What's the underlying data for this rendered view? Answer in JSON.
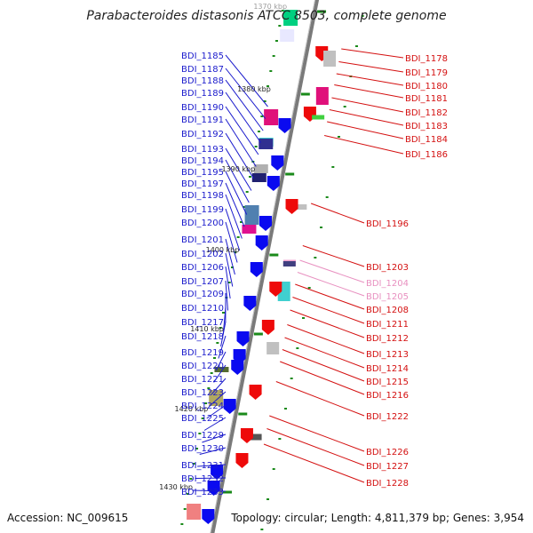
{
  "title": "Parabacteroides distasonis ATCC 8503, complete genome",
  "accession": "Accession: NC_009615",
  "summary": "Topology: circular; Length: 4,811,379 bp; Genes: 3,954",
  "colors": {
    "left_label": "#1a1acc",
    "right_label": "#d41010",
    "faded_label": "#e890c0",
    "forward_gene": "#0a0af0",
    "reverse_gene": "#ee0a0a",
    "backbone": "#7a7a7a",
    "tick": "#1a8a1a"
  },
  "scale_labels": [
    "1370 kbp",
    "1380 kbp",
    "1390 kbp",
    "1400 kbp",
    "1410 kbp",
    "1420 kbp",
    "1430 kbp"
  ],
  "left_genes": [
    "BDI_1185",
    "BDI_1187",
    "BDI_1188",
    "BDI_1189",
    "BDI_1190",
    "BDI_1191",
    "BDI_1192",
    "BDI_1193",
    "BDI_1194",
    "BDI_1195",
    "BDI_1197",
    "BDI_1198",
    "BDI_1199",
    "BDI_1200",
    "BDI_1201",
    "BDI_1202",
    "BDI_1206",
    "BDI_1207",
    "BDI_1209",
    "BDI_1210",
    "BDI_1217",
    "BDI_1218",
    "BDI_1219",
    "BDI_1220",
    "BDI_1221",
    "BDI_1223",
    "BDI_1224",
    "BDI_1225",
    "BDI_1229",
    "BDI_1230",
    "BDI_1231",
    "BDI_1232",
    "BDI_1233"
  ],
  "right_genes": [
    "BDI_1178",
    "BDI_1179",
    "BDI_1180",
    "BDI_1181",
    "BDI_1182",
    "BDI_1183",
    "BDI_1184",
    "BDI_1186",
    "BDI_1196",
    "BDI_1203",
    "BDI_1204",
    "BDI_1205",
    "BDI_1208",
    "BDI_1211",
    "BDI_1212",
    "BDI_1213",
    "BDI_1214",
    "BDI_1215",
    "BDI_1216",
    "BDI_1222",
    "BDI_1226",
    "BDI_1227",
    "BDI_1228"
  ],
  "faded_genes": [
    "BDI_1204",
    "BDI_1205"
  ]
}
